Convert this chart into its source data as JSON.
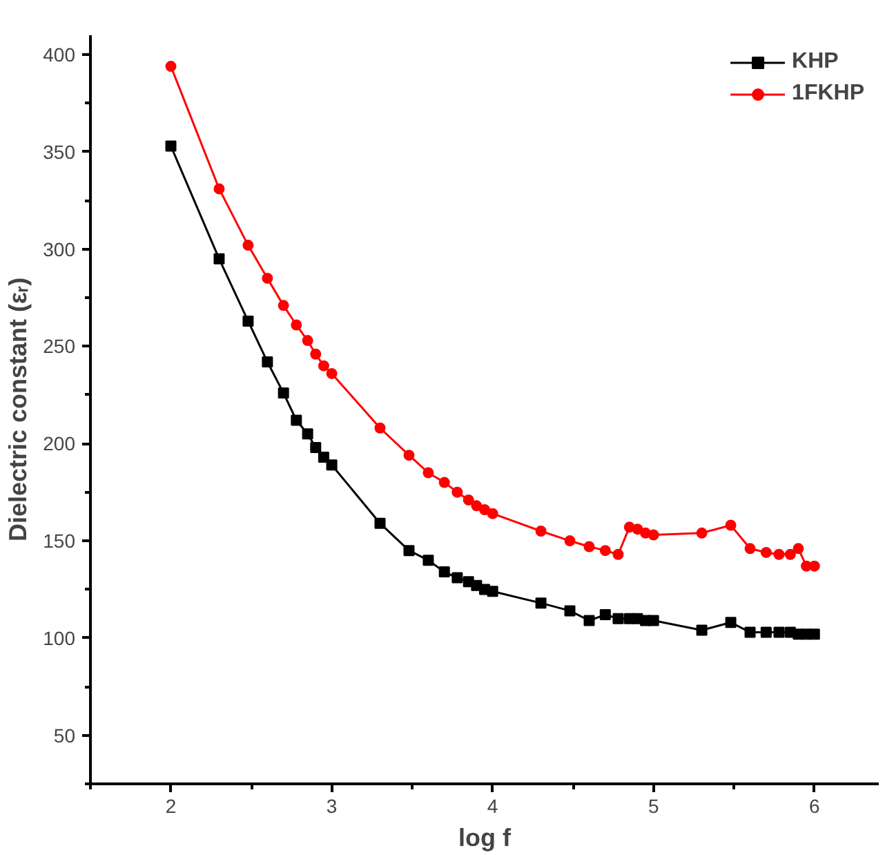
{
  "chart_data": {
    "type": "line",
    "xlabel": "log f",
    "ylabel": "Dielectric constant (εᵣ)",
    "x": [
      2,
      2.3,
      2.48,
      2.6,
      2.7,
      2.78,
      2.85,
      2.9,
      2.95,
      3.0,
      3.3,
      3.48,
      3.6,
      3.7,
      3.78,
      3.85,
      3.9,
      3.95,
      4.0,
      4.3,
      4.48,
      4.6,
      4.7,
      4.78,
      4.85,
      4.9,
      4.95,
      5.0,
      5.3,
      5.48,
      5.6,
      5.7,
      5.78,
      5.85,
      5.9,
      5.95,
      6.0
    ],
    "series": [
      {
        "name": "KHP",
        "color": "#000000",
        "marker": "square",
        "values": [
          353,
          295,
          263,
          242,
          226,
          212,
          205,
          198,
          193,
          189,
          159,
          145,
          140,
          134,
          131,
          129,
          127,
          125,
          124,
          118,
          114,
          109,
          112,
          110,
          110,
          110,
          109,
          109,
          104,
          108,
          103,
          103,
          103,
          103,
          102,
          102,
          102
        ]
      },
      {
        "name": "1FKHP",
        "color": "#ff0000",
        "marker": "circle",
        "values": [
          394,
          331,
          302,
          285,
          271,
          261,
          253,
          246,
          240,
          236,
          208,
          194,
          185,
          180,
          175,
          171,
          168,
          166,
          164,
          155,
          150,
          147,
          145,
          143,
          157,
          156,
          154,
          153,
          154,
          158,
          146,
          144,
          143,
          143,
          146,
          137,
          137
        ]
      }
    ],
    "xlim": [
      1.5,
      6.4
    ],
    "ylim": [
      25,
      410
    ],
    "xticks": [
      2,
      3,
      4,
      5,
      6
    ],
    "yticks": [
      50,
      100,
      150,
      200,
      250,
      300,
      350,
      400
    ],
    "grid": false,
    "legend": "top right",
    "line_style": "solid"
  }
}
